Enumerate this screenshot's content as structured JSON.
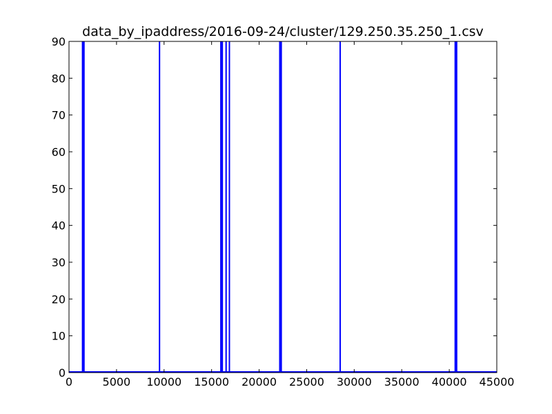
{
  "chart_data": {
    "type": "bar",
    "title": "data_by_ipaddress/2016-09-24/cluster/129.250.35.250_1.csv",
    "xlabel": "",
    "ylabel": "",
    "xlim": [
      0,
      45000
    ],
    "ylim": [
      0,
      90
    ],
    "x_ticks": [
      0,
      5000,
      10000,
      15000,
      20000,
      25000,
      30000,
      35000,
      40000,
      45000
    ],
    "y_ticks": [
      0,
      10,
      20,
      30,
      40,
      50,
      60,
      70,
      80,
      90
    ],
    "grid": false,
    "series": [
      {
        "color": "#0000ff",
        "bars": [
          {
            "x": 1350,
            "width": 300,
            "value": 90
          },
          {
            "x": 9450,
            "width": 120,
            "value": 90
          },
          {
            "x": 15900,
            "width": 300,
            "value": 90
          },
          {
            "x": 16450,
            "width": 150,
            "value": 90
          },
          {
            "x": 16800,
            "width": 120,
            "value": 90
          },
          {
            "x": 22100,
            "width": 300,
            "value": 90
          },
          {
            "x": 28450,
            "width": 100,
            "value": 90
          },
          {
            "x": 40550,
            "width": 300,
            "value": 90
          }
        ]
      }
    ]
  }
}
